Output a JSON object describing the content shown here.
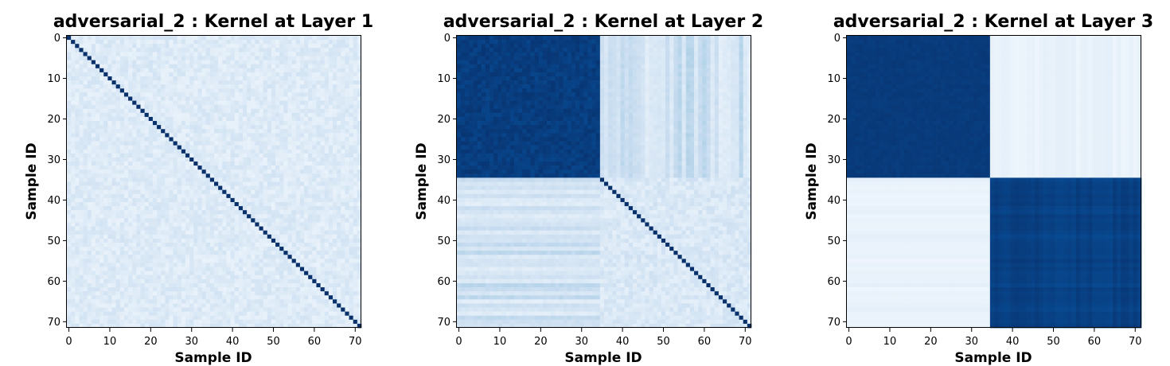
{
  "chart_data": [
    {
      "type": "heatmap",
      "title": "adversarial_2 : Kernel at Layer 1",
      "xlabel": "Sample ID",
      "ylabel": "Sample ID",
      "n": 72,
      "colormap": "Blues",
      "xlim": [
        0,
        71
      ],
      "ylim": [
        71,
        0
      ],
      "xticks": [
        0,
        10,
        20,
        30,
        40,
        50,
        60,
        70
      ],
      "yticks": [
        0,
        10,
        20,
        30,
        40,
        50,
        60,
        70
      ],
      "pattern": {
        "kind": "identity",
        "diagonal": 1.0,
        "off_diagonal": 0.13,
        "noise": 0.06
      }
    },
    {
      "type": "heatmap",
      "title": "adversarial_2 : Kernel at Layer 2",
      "xlabel": "Sample ID",
      "ylabel": "Sample ID",
      "n": 72,
      "colormap": "Blues",
      "xlim": [
        0,
        71
      ],
      "ylim": [
        71,
        0
      ],
      "xticks": [
        0,
        10,
        20,
        30,
        40,
        50,
        60,
        70
      ],
      "yticks": [
        0,
        10,
        20,
        30,
        40,
        50,
        60,
        70
      ],
      "pattern": {
        "kind": "block_plus_identity",
        "split": 35,
        "block_a": 0.95,
        "cross": 0.2,
        "block_b": 0.15,
        "diagonal": 1.0,
        "noise": 0.06
      }
    },
    {
      "type": "heatmap",
      "title": "adversarial_2 : Kernel at Layer 3",
      "xlabel": "Sample ID",
      "ylabel": "Sample ID",
      "n": 72,
      "colormap": "Blues",
      "xlim": [
        0,
        71
      ],
      "ylim": [
        71,
        0
      ],
      "xticks": [
        0,
        10,
        20,
        30,
        40,
        50,
        60,
        70
      ],
      "yticks": [
        0,
        10,
        20,
        30,
        40,
        50,
        60,
        70
      ],
      "pattern": {
        "kind": "two_blocks",
        "split": 35,
        "block_a": 0.96,
        "cross": 0.05,
        "block_b": 0.97,
        "noise": 0.04
      }
    }
  ],
  "colors": {
    "blues_low": "#f7fbff",
    "blues_high": "#08306b"
  }
}
